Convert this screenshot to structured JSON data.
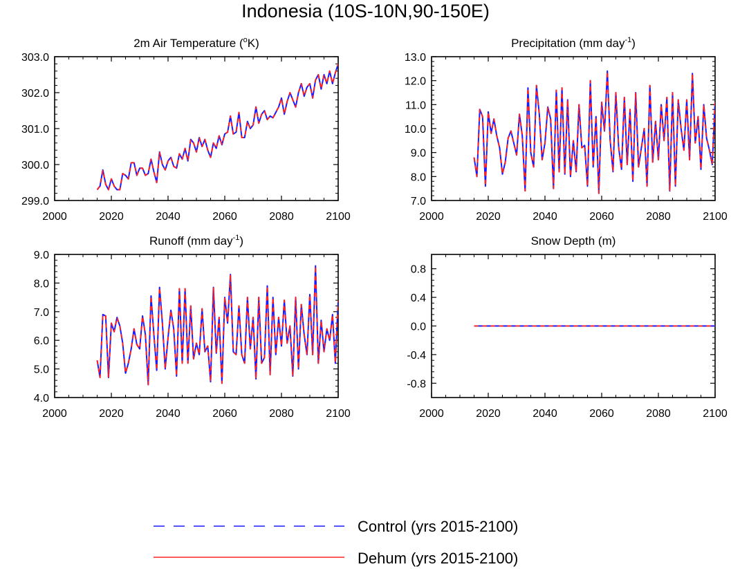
{
  "title": "Indonesia (10S-10N,90-150E)",
  "colors": {
    "control": "#1a1aff",
    "dehum": "#ff2020",
    "axis": "#000000"
  },
  "legend": [
    {
      "label": "Control (yrs 2015-2100)",
      "color": "#1a1aff",
      "style": "dashed"
    },
    {
      "label": "Dehum (yrs 2015-2100)",
      "color": "#ff2020",
      "style": "solid"
    }
  ],
  "chart_data": [
    {
      "type": "line",
      "title": "2m Air Temperature (°K)",
      "title_parts": {
        "main": "2m Air Temperature (",
        "sup": "o",
        "tail": "K)"
      },
      "xlim": [
        2000,
        2100
      ],
      "ylim": [
        299.0,
        303.0
      ],
      "xticks": [
        2000,
        2020,
        2040,
        2060,
        2080,
        2100
      ],
      "yticks": [
        299.0,
        300.0,
        301.0,
        302.0,
        303.0
      ],
      "ytick_labels": [
        "299.0",
        "300.0",
        "301.0",
        "302.0",
        "303.0"
      ],
      "years_start": 2015,
      "years_end": 2100,
      "series": [
        {
          "name": "Control",
          "values": [
            299.3,
            299.4,
            299.85,
            299.45,
            299.3,
            299.6,
            299.4,
            299.3,
            299.3,
            299.75,
            299.7,
            299.6,
            300.05,
            300.05,
            299.7,
            299.9,
            299.9,
            299.7,
            299.75,
            300.15,
            299.8,
            299.5,
            300.35,
            300.0,
            299.85,
            300.1,
            300.2,
            299.95,
            299.9,
            300.3,
            300.15,
            300.45,
            300.1,
            300.7,
            300.6,
            300.35,
            300.75,
            300.5,
            300.7,
            300.4,
            300.2,
            300.6,
            300.45,
            300.8,
            300.55,
            300.85,
            300.9,
            301.35,
            300.85,
            300.9,
            301.45,
            300.75,
            300.75,
            301.2,
            301.0,
            301.1,
            301.6,
            301.15,
            301.4,
            301.5,
            301.25,
            301.35,
            301.3,
            301.45,
            301.6,
            301.85,
            301.4,
            301.75,
            302.0,
            301.8,
            301.6,
            302.0,
            302.25,
            301.9,
            302.15,
            302.25,
            301.85,
            302.35,
            302.5,
            302.1,
            302.5,
            302.25,
            302.6,
            302.25,
            302.55,
            302.8
          ]
        },
        {
          "name": "Dehum",
          "values": [
            299.3,
            299.4,
            299.85,
            299.45,
            299.3,
            299.6,
            299.4,
            299.3,
            299.3,
            299.75,
            299.7,
            299.6,
            300.05,
            300.05,
            299.7,
            299.9,
            299.9,
            299.7,
            299.75,
            300.15,
            299.8,
            299.5,
            300.35,
            300.0,
            299.85,
            300.1,
            300.2,
            299.95,
            299.9,
            300.3,
            300.15,
            300.45,
            300.1,
            300.7,
            300.6,
            300.35,
            300.75,
            300.5,
            300.7,
            300.4,
            300.2,
            300.6,
            300.45,
            300.8,
            300.55,
            300.85,
            300.9,
            301.35,
            300.85,
            300.9,
            301.45,
            300.75,
            300.75,
            301.2,
            301.0,
            301.1,
            301.6,
            301.15,
            301.4,
            301.5,
            301.25,
            301.35,
            301.3,
            301.45,
            301.6,
            301.85,
            301.4,
            301.75,
            302.0,
            301.8,
            301.6,
            302.0,
            302.25,
            301.9,
            302.15,
            302.25,
            301.85,
            302.35,
            302.5,
            302.1,
            302.5,
            302.25,
            302.6,
            302.25,
            302.55,
            302.8
          ]
        }
      ]
    },
    {
      "type": "line",
      "title": "Precipitation (mm day-1)",
      "title_parts": {
        "main": "Precipitation (mm day",
        "sup": "-1",
        "tail": ")"
      },
      "xlim": [
        2000,
        2100
      ],
      "ylim": [
        7.0,
        13.0
      ],
      "xticks": [
        2000,
        2020,
        2040,
        2060,
        2080,
        2100
      ],
      "yticks": [
        7,
        8,
        9,
        10,
        11,
        12,
        13
      ],
      "ytick_labels": [
        "7.0",
        "8.0",
        "9.0",
        "10.0",
        "11.0",
        "12.0",
        "13.0"
      ],
      "years_start": 2015,
      "years_end": 2100,
      "series": [
        {
          "name": "Control",
          "values": [
            8.8,
            8.0,
            10.8,
            10.5,
            7.6,
            10.7,
            9.8,
            10.4,
            9.7,
            9.2,
            8.1,
            8.6,
            9.6,
            9.9,
            9.4,
            8.9,
            10.6,
            9.7,
            7.4,
            11.7,
            9.0,
            8.4,
            11.8,
            10.6,
            8.7,
            9.4,
            10.9,
            10.4,
            7.5,
            11.6,
            8.2,
            11.7,
            8.1,
            11.2,
            8.0,
            9.5,
            8.2,
            11.0,
            9.2,
            9.3,
            7.6,
            12.0,
            8.4,
            10.5,
            7.3,
            11.1,
            9.9,
            12.4,
            9.5,
            8.2,
            11.5,
            9.2,
            8.3,
            11.3,
            8.5,
            10.8,
            7.8,
            11.5,
            8.4,
            9.2,
            10.0,
            7.6,
            11.8,
            8.6,
            10.3,
            8.7,
            11.0,
            9.5,
            11.3,
            7.4,
            11.5,
            7.6,
            11.2,
            10.0,
            9.1,
            11.2,
            8.7,
            12.3,
            9.4,
            10.5,
            8.3,
            11.0,
            9.6,
            9.1,
            8.5,
            11.1
          ]
        },
        {
          "name": "Dehum",
          "values": [
            8.8,
            8.0,
            10.8,
            10.5,
            7.6,
            10.7,
            9.8,
            10.4,
            9.7,
            9.2,
            8.1,
            8.6,
            9.6,
            9.9,
            9.4,
            8.9,
            10.6,
            9.7,
            7.4,
            11.7,
            9.0,
            8.4,
            11.8,
            10.6,
            8.7,
            9.4,
            10.9,
            10.4,
            7.5,
            11.6,
            8.2,
            11.7,
            8.1,
            11.2,
            8.0,
            9.5,
            8.2,
            11.0,
            9.2,
            9.3,
            7.6,
            12.0,
            8.4,
            10.5,
            7.3,
            11.1,
            9.9,
            12.4,
            9.5,
            8.2,
            11.5,
            9.2,
            8.3,
            11.3,
            8.5,
            10.8,
            7.8,
            11.5,
            8.4,
            9.2,
            10.0,
            7.6,
            11.8,
            8.6,
            10.3,
            8.7,
            11.0,
            9.5,
            11.3,
            7.4,
            11.5,
            7.6,
            11.2,
            10.0,
            9.1,
            11.2,
            8.7,
            12.3,
            9.4,
            10.5,
            8.3,
            11.0,
            9.6,
            9.1,
            8.5,
            11.1
          ]
        }
      ]
    },
    {
      "type": "line",
      "title": "Runoff (mm day-1)",
      "title_parts": {
        "main": "Runoff (mm day",
        "sup": "-1",
        "tail": ")"
      },
      "xlim": [
        2000,
        2100
      ],
      "ylim": [
        4.0,
        9.0
      ],
      "xticks": [
        2000,
        2020,
        2040,
        2060,
        2080,
        2100
      ],
      "yticks": [
        4,
        5,
        6,
        7,
        8,
        9
      ],
      "ytick_labels": [
        "4.0",
        "5.0",
        "6.0",
        "7.0",
        "8.0",
        "9.0"
      ],
      "years_start": 2015,
      "years_end": 2100,
      "series": [
        {
          "name": "Control",
          "values": [
            5.3,
            4.7,
            6.9,
            6.85,
            4.7,
            6.6,
            6.3,
            6.8,
            6.5,
            5.9,
            4.85,
            5.2,
            5.7,
            6.4,
            5.85,
            5.7,
            6.85,
            6.2,
            4.45,
            7.55,
            6.2,
            4.95,
            7.85,
            6.6,
            5.0,
            6.1,
            7.05,
            6.4,
            4.75,
            7.8,
            5.2,
            7.8,
            5.2,
            7.2,
            5.35,
            5.9,
            5.5,
            7.1,
            5.6,
            5.8,
            4.55,
            7.85,
            5.55,
            6.8,
            4.5,
            7.5,
            6.6,
            8.3,
            5.6,
            5.5,
            7.2,
            5.5,
            5.2,
            7.5,
            5.7,
            6.8,
            4.65,
            7.5,
            5.2,
            5.4,
            7.9,
            4.8,
            7.5,
            5.5,
            6.8,
            5.8,
            7.4,
            5.9,
            6.5,
            4.75,
            7.5,
            5.0,
            7.25,
            6.2,
            5.5,
            7.6,
            5.5,
            8.6,
            5.2,
            6.7,
            5.6,
            6.4,
            6.0,
            6.9,
            5.2,
            7.4
          ]
        },
        {
          "name": "Dehum",
          "values": [
            5.3,
            4.7,
            6.9,
            6.85,
            4.7,
            6.6,
            6.3,
            6.8,
            6.5,
            5.9,
            4.85,
            5.2,
            5.7,
            6.4,
            5.85,
            5.7,
            6.85,
            6.2,
            4.45,
            7.55,
            6.2,
            4.95,
            7.85,
            6.6,
            5.0,
            6.1,
            7.05,
            6.4,
            4.75,
            7.8,
            5.2,
            7.8,
            5.2,
            7.2,
            5.35,
            5.9,
            5.5,
            7.1,
            5.6,
            5.8,
            4.55,
            7.85,
            5.55,
            6.8,
            4.5,
            7.5,
            6.6,
            8.3,
            5.6,
            5.5,
            7.2,
            5.5,
            5.2,
            7.5,
            5.7,
            6.8,
            4.65,
            7.5,
            5.2,
            5.4,
            7.9,
            4.8,
            7.5,
            5.5,
            6.8,
            5.8,
            7.4,
            5.9,
            6.5,
            4.75,
            7.5,
            5.0,
            7.25,
            6.2,
            5.5,
            7.6,
            5.5,
            8.6,
            5.2,
            6.7,
            5.6,
            6.4,
            6.0,
            6.9,
            5.2,
            7.4
          ]
        }
      ]
    },
    {
      "type": "line",
      "title": "Snow Depth (m)",
      "title_parts": {
        "main": "Snow Depth (m)",
        "sup": "",
        "tail": ""
      },
      "xlim": [
        2000,
        2100
      ],
      "ylim": [
        -1.0,
        1.0
      ],
      "xticks": [
        2000,
        2020,
        2040,
        2060,
        2080,
        2100
      ],
      "yticks": [
        -0.8,
        -0.4,
        0.0,
        0.4,
        0.8
      ],
      "ytick_labels": [
        "-0.8",
        "-0.4",
        "0.0",
        "0.4",
        "0.8"
      ],
      "years_start": 2015,
      "years_end": 2100,
      "series": [
        {
          "name": "Control",
          "values": [
            0.0,
            0.0
          ],
          "x": [
            2015,
            2100
          ]
        },
        {
          "name": "Dehum",
          "values": [
            0.0,
            0.0
          ],
          "x": [
            2015,
            2100
          ]
        }
      ]
    }
  ]
}
